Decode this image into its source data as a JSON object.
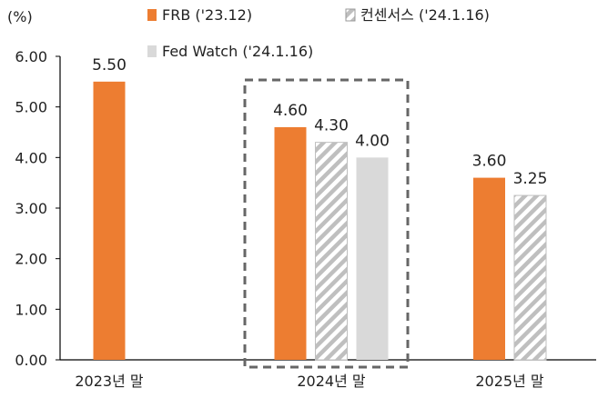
{
  "chart_data": {
    "type": "bar",
    "unit_label": "(%)",
    "categories": [
      "2023년 말",
      "2024년 말",
      "2025년 말"
    ],
    "series": [
      {
        "name": "FRB ('23.12)",
        "values": [
          5.5,
          4.6,
          3.6
        ],
        "value_labels": [
          "5.50",
          "4.60",
          "3.60"
        ],
        "style": "solid",
        "color": "#ED7D31"
      },
      {
        "name": "컨센서스 ('24.1.16)",
        "values": [
          null,
          4.3,
          3.25
        ],
        "value_labels": [
          null,
          "4.30",
          "3.25"
        ],
        "style": "hatched",
        "color": "#BFBFBF"
      },
      {
        "name": "Fed Watch ('24.1.16)",
        "values": [
          null,
          4.0,
          null
        ],
        "value_labels": [
          null,
          "4.00",
          null
        ],
        "style": "solid",
        "color": "#D9D9D9"
      }
    ],
    "y_ticks": [
      "0.00",
      "1.00",
      "2.00",
      "3.00",
      "4.00",
      "5.00",
      "6.00"
    ],
    "ylim": [
      0,
      6
    ],
    "grid": false,
    "legend_position": "top",
    "highlight_category": "2024년 말"
  }
}
